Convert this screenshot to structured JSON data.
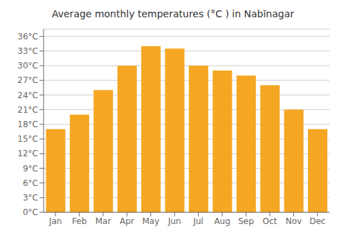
{
  "chart_data": {
    "type": "bar",
    "title": "Average monthly temperatures (°C ) in Nabīnagar",
    "categories": [
      "Jan",
      "Feb",
      "Mar",
      "Apr",
      "May",
      "Jun",
      "Jul",
      "Aug",
      "Sep",
      "Oct",
      "Nov",
      "Dec"
    ],
    "values": [
      17,
      20,
      25,
      30,
      34,
      33.5,
      30,
      29,
      28,
      26,
      21,
      17
    ],
    "color": "#F5A623",
    "ylim": [
      0,
      37.5
    ],
    "yticks": [
      {
        "value": 0,
        "label": "0°C"
      },
      {
        "value": 3,
        "label": "3°C"
      },
      {
        "value": 6,
        "label": "6°C"
      },
      {
        "value": 9,
        "label": "9°C"
      },
      {
        "value": 12,
        "label": "12°C"
      },
      {
        "value": 15,
        "label": "15°C"
      },
      {
        "value": 18,
        "label": "18°C"
      },
      {
        "value": 21,
        "label": "21°C"
      },
      {
        "value": 24,
        "label": "24°C"
      },
      {
        "value": 27,
        "label": "27°C"
      },
      {
        "value": 30,
        "label": "30°C"
      },
      {
        "value": 33,
        "label": "33°C"
      },
      {
        "value": 36,
        "label": "36°C"
      }
    ],
    "grid": true
  }
}
